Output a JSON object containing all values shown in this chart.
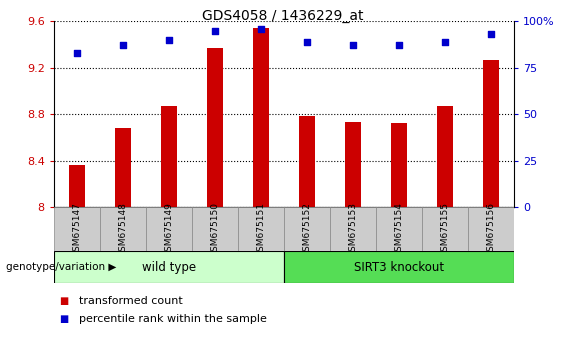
{
  "title": "GDS4058 / 1436229_at",
  "samples": [
    "GSM675147",
    "GSM675148",
    "GSM675149",
    "GSM675150",
    "GSM675151",
    "GSM675152",
    "GSM675153",
    "GSM675154",
    "GSM675155",
    "GSM675156"
  ],
  "transformed_count": [
    8.36,
    8.68,
    8.87,
    9.37,
    9.54,
    8.78,
    8.73,
    8.72,
    8.87,
    9.27
  ],
  "percentile_rank": [
    83,
    87,
    90,
    95,
    96,
    89,
    87,
    87,
    89,
    93
  ],
  "bar_color": "#cc0000",
  "dot_color": "#0000cc",
  "ylim_left": [
    8.0,
    9.6
  ],
  "ylim_right": [
    0,
    100
  ],
  "yticks_left": [
    8.0,
    8.4,
    8.8,
    9.2,
    9.6
  ],
  "ytick_labels_left": [
    "8",
    "8.4",
    "8.8",
    "9.2",
    "9.6"
  ],
  "yticks_right": [
    0,
    25,
    50,
    75,
    100
  ],
  "ytick_labels_right": [
    "0",
    "25",
    "50",
    "75",
    "100%"
  ],
  "wt_color": "#ccffcc",
  "ko_color": "#55dd55",
  "wt_label": "wild type",
  "ko_label": "SIRT3 knockout",
  "group_label": "genotype/variation",
  "legend_bar_label": "transformed count",
  "legend_dot_label": "percentile rank within the sample",
  "bar_width": 0.35,
  "tick_label_color_left": "#cc0000",
  "tick_label_color_right": "#0000cc",
  "xtick_bg_color": "#cccccc",
  "xtick_border_color": "#888888"
}
